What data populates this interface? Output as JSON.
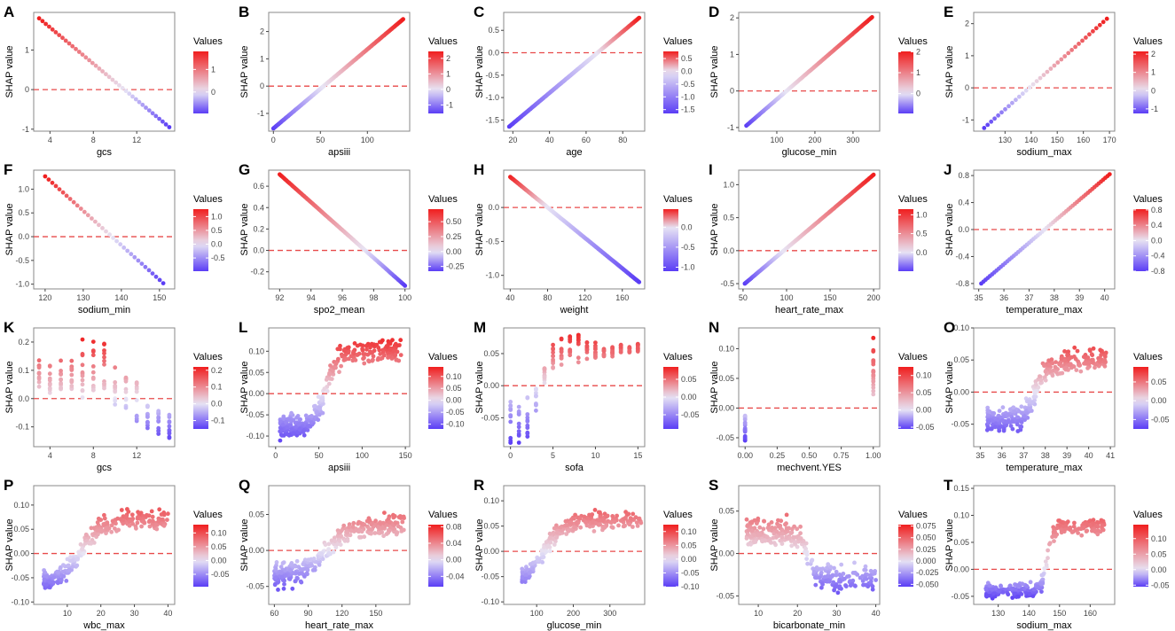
{
  "figure": {
    "y_axis_label": "SHAP value",
    "legend_title": "Values",
    "colors": {
      "low": "#5a3df5",
      "mid": "#e8e4f4",
      "high": "#f01e1e",
      "zero_line": "#e84a4a",
      "panel_border": "#888888"
    }
  },
  "chart_data": [
    {
      "letter": "A",
      "type": "scatter",
      "pattern": "linear",
      "xlabel": "gcs",
      "ylabel": "SHAP value",
      "xlim": [
        2.5,
        15.5
      ],
      "ylim": [
        -1.05,
        1.95
      ],
      "xticks": [
        4,
        8,
        12
      ],
      "yticks": [
        -1,
        0,
        1
      ],
      "ytick_labels": [
        "-1",
        "0",
        "1"
      ],
      "x_range": [
        3,
        15
      ],
      "y_range": [
        1.8,
        -0.95
      ],
      "n": 40,
      "legend_ticks": [
        1,
        0
      ],
      "legend_tick_labels": [
        "1",
        "0"
      ],
      "legend_range": [
        -0.95,
        1.8
      ]
    },
    {
      "letter": "B",
      "type": "scatter",
      "pattern": "linear",
      "xlabel": "apsiii",
      "ylabel": "SHAP value",
      "xlim": [
        -5,
        145
      ],
      "ylim": [
        -1.65,
        2.7
      ],
      "xticks": [
        0,
        50,
        100
      ],
      "yticks": [
        -1,
        0,
        1,
        2
      ],
      "ytick_labels": [
        "-1",
        "0",
        "1",
        "2"
      ],
      "x_range": [
        0,
        138
      ],
      "y_range": [
        -1.55,
        2.45
      ],
      "n": 150,
      "legend_ticks": [
        2,
        1,
        0,
        -1
      ],
      "legend_tick_labels": [
        "2",
        "1",
        "0",
        "-1"
      ],
      "legend_range": [
        -1.55,
        2.45
      ]
    },
    {
      "letter": "C",
      "type": "scatter",
      "pattern": "linear",
      "xlabel": "age",
      "ylabel": "SHAP value",
      "xlim": [
        15,
        92
      ],
      "ylim": [
        -1.75,
        0.9
      ],
      "xticks": [
        20,
        40,
        60,
        80
      ],
      "yticks": [
        -1.5,
        -1.0,
        -0.5,
        0.0,
        0.5
      ],
      "ytick_labels": [
        "-1.5",
        "-1.0",
        "-0.5",
        "0.0",
        "0.5"
      ],
      "x_range": [
        18,
        89
      ],
      "y_range": [
        -1.65,
        0.78
      ],
      "n": 160,
      "legend_ticks": [
        0.5,
        0.0,
        -0.5,
        -1.0,
        -1.5
      ],
      "legend_tick_labels": [
        "0.5",
        "0.0",
        "-0.5",
        "-1.0",
        "-1.5"
      ],
      "legend_range": [
        -1.65,
        0.78
      ]
    },
    {
      "letter": "D",
      "type": "scatter",
      "pattern": "linear",
      "xlabel": "glucose_min",
      "ylabel": "SHAP value",
      "xlim": [
        0,
        370
      ],
      "ylim": [
        -1.1,
        2.15
      ],
      "xticks": [
        100,
        200,
        300
      ],
      "yticks": [
        -1,
        0,
        1,
        2
      ],
      "ytick_labels": [
        "-1",
        "0",
        "1",
        "2"
      ],
      "x_range": [
        20,
        350
      ],
      "y_range": [
        -0.95,
        2.02
      ],
      "n": 110,
      "legend_ticks": [
        2,
        1,
        0
      ],
      "legend_tick_labels": [
        "2",
        "1",
        "0"
      ],
      "legend_range": [
        -0.95,
        2.02
      ]
    },
    {
      "letter": "E",
      "type": "scatter",
      "pattern": "linear",
      "xlabel": "sodium_max",
      "ylabel": "SHAP value",
      "xlim": [
        118,
        172
      ],
      "ylim": [
        -1.35,
        2.35
      ],
      "xticks": [
        130,
        140,
        150,
        160,
        170
      ],
      "yticks": [
        -1,
        0,
        1,
        2
      ],
      "ytick_labels": [
        "-1",
        "0",
        "1",
        "2"
      ],
      "x_range": [
        122,
        169
      ],
      "y_range": [
        -1.25,
        2.15
      ],
      "n": 36,
      "legend_ticks": [
        2,
        1,
        0,
        -1
      ],
      "legend_tick_labels": [
        "2",
        "1",
        "0",
        "-1"
      ],
      "legend_range": [
        -1.25,
        2.15
      ]
    },
    {
      "letter": "F",
      "type": "scatter",
      "pattern": "linear",
      "xlabel": "sodium_min",
      "ylabel": "SHAP value",
      "xlim": [
        117,
        154
      ],
      "ylim": [
        -1.1,
        1.4
      ],
      "xticks": [
        120,
        130,
        140,
        150
      ],
      "yticks": [
        -1.0,
        -0.5,
        0.0,
        0.5,
        1.0
      ],
      "ytick_labels": [
        "-1.0",
        "-0.5",
        "0.0",
        "0.5",
        "1.0"
      ],
      "x_range": [
        120,
        151
      ],
      "y_range": [
        1.27,
        -0.98
      ],
      "n": 34,
      "legend_ticks": [
        1.0,
        0.5,
        0.0,
        -0.5
      ],
      "legend_tick_labels": [
        "1.0",
        "0.5",
        "0.0",
        "-0.5"
      ],
      "legend_range": [
        -0.98,
        1.27
      ]
    },
    {
      "letter": "G",
      "type": "scatter",
      "pattern": "linear",
      "xlabel": "spo2_mean",
      "ylabel": "SHAP value",
      "xlim": [
        91.3,
        100.3
      ],
      "ylim": [
        -0.36,
        0.75
      ],
      "xticks": [
        92,
        94,
        96,
        98,
        100
      ],
      "yticks": [
        -0.2,
        0.0,
        0.2,
        0.4,
        0.6
      ],
      "ytick_labels": [
        "-0.2",
        "0.0",
        "0.2",
        "0.4",
        "0.6"
      ],
      "x_range": [
        92,
        100
      ],
      "y_range": [
        0.71,
        -0.33
      ],
      "n": 110,
      "legend_ticks": [
        0.5,
        0.25,
        0.0,
        -0.25
      ],
      "legend_tick_labels": [
        "0.50",
        "0.25",
        "0.00",
        "-0.25"
      ],
      "legend_range": [
        -0.33,
        0.71
      ]
    },
    {
      "letter": "H",
      "type": "scatter",
      "pattern": "linear",
      "xlabel": "weight",
      "ylabel": "SHAP value",
      "xlim": [
        33,
        184
      ],
      "ylim": [
        -1.2,
        0.55
      ],
      "xticks": [
        40,
        80,
        120,
        160
      ],
      "yticks": [
        -1.0,
        -0.5,
        0.0
      ],
      "ytick_labels": [
        "-1.0",
        "-0.5",
        "0.0"
      ],
      "x_range": [
        40,
        178
      ],
      "y_range": [
        0.45,
        -1.1
      ],
      "n": 150,
      "legend_ticks": [
        0.0,
        -0.5,
        -1.0
      ],
      "legend_tick_labels": [
        "0.0",
        "-0.5",
        "-1.0"
      ],
      "legend_range": [
        -1.1,
        0.45
      ]
    },
    {
      "letter": "I",
      "type": "scatter",
      "pattern": "linear",
      "xlabel": "heart_rate_max",
      "ylabel": "SHAP value",
      "xlim": [
        45,
        207
      ],
      "ylim": [
        -0.58,
        1.22
      ],
      "xticks": [
        50,
        100,
        150,
        200
      ],
      "yticks": [
        -0.5,
        0.0,
        0.5,
        1.0
      ],
      "ytick_labels": [
        "-0.5",
        "0.0",
        "0.5",
        "1.0"
      ],
      "x_range": [
        52,
        200
      ],
      "y_range": [
        -0.5,
        1.15
      ],
      "n": 120,
      "legend_ticks": [
        1.0,
        0.5,
        0.0
      ],
      "legend_tick_labels": [
        "1.0",
        "0.5",
        "0.0"
      ],
      "legend_range": [
        -0.5,
        1.15
      ]
    },
    {
      "letter": "J",
      "type": "scatter",
      "pattern": "linear",
      "xlabel": "temperature_max",
      "ylabel": "SHAP value",
      "xlim": [
        34.8,
        40.4
      ],
      "ylim": [
        -0.88,
        0.88
      ],
      "xticks": [
        35,
        36,
        37,
        38,
        39,
        40
      ],
      "yticks": [
        -0.8,
        -0.4,
        0.0,
        0.4,
        0.8
      ],
      "ytick_labels": [
        "-0.8",
        "-0.4",
        "0.0",
        "0.4",
        "0.8"
      ],
      "x_range": [
        35.1,
        40.2
      ],
      "y_range": [
        -0.8,
        0.82
      ],
      "n": 60,
      "legend_ticks": [
        0.8,
        0.4,
        0.0,
        -0.4,
        -0.8
      ],
      "legend_tick_labels": [
        "0.8",
        "0.4",
        "0.0",
        "-0.4",
        "-0.8"
      ],
      "legend_range": [
        -0.8,
        0.82
      ]
    },
    {
      "letter": "K",
      "type": "scatter",
      "pattern": "cat_step",
      "xlabel": "gcs",
      "ylabel": "SHAP value",
      "xlim": [
        2.5,
        15.5
      ],
      "ylim": [
        -0.17,
        0.25
      ],
      "xticks": [
        4,
        8,
        12
      ],
      "yticks": [
        -0.1,
        0.0,
        0.1,
        0.2
      ],
      "ytick_labels": [
        "-0.1",
        "0.0",
        "0.1",
        "0.2"
      ],
      "cats": [
        3,
        4,
        5,
        6,
        7,
        8,
        9,
        10,
        11,
        12,
        13,
        14,
        15
      ],
      "cat_ranges": [
        [
          0.04,
          0.18
        ],
        [
          0.02,
          0.12
        ],
        [
          0.03,
          0.14
        ],
        [
          0.02,
          0.15
        ],
        [
          0.0,
          0.21
        ],
        [
          0.01,
          0.22
        ],
        [
          0.0,
          0.2
        ],
        [
          -0.03,
          0.12
        ],
        [
          -0.05,
          0.1
        ],
        [
          -0.08,
          0.06
        ],
        [
          -0.12,
          -0.02
        ],
        [
          -0.13,
          -0.03
        ],
        [
          -0.15,
          -0.05
        ]
      ],
      "n": 150,
      "legend_ticks": [
        0.2,
        0.1,
        0.0,
        -0.1
      ],
      "legend_tick_labels": [
        "0.2",
        "0.1",
        "0.0",
        "-0.1"
      ],
      "legend_range": [
        -0.15,
        0.22
      ]
    },
    {
      "letter": "L",
      "type": "scatter",
      "pattern": "sigmoid",
      "xlabel": "apsiii",
      "ylabel": "SHAP value",
      "xlim": [
        -8,
        155
      ],
      "ylim": [
        -0.125,
        0.155
      ],
      "xticks": [
        0,
        50,
        100,
        150
      ],
      "yticks": [
        -0.1,
        -0.05,
        0.0,
        0.05,
        0.1
      ],
      "ytick_labels": [
        "-0.10",
        "-0.05",
        "0.00",
        "0.05",
        "0.10"
      ],
      "x_range": [
        5,
        145
      ],
      "s_params": [
        -0.08,
        0.1,
        58,
        7,
        0.025
      ],
      "n": 330,
      "legend_ticks": [
        0.1,
        0.05,
        0.0,
        -0.05,
        -0.1
      ],
      "legend_tick_labels": [
        "0.10",
        "0.05",
        "0.00",
        "-0.05",
        "-0.10"
      ],
      "legend_range": [
        -0.12,
        0.14
      ]
    },
    {
      "letter": "M",
      "type": "scatter",
      "pattern": "cat_step",
      "xlabel": "sofa",
      "ylabel": "SHAP value",
      "xlim": [
        -0.8,
        15.8
      ],
      "ylim": [
        -0.095,
        0.09
      ],
      "xticks": [
        0,
        5,
        10,
        15
      ],
      "yticks": [
        -0.05,
        0.0,
        0.05
      ],
      "ytick_labels": [
        "-0.05",
        "0.00",
        "0.05"
      ],
      "cats": [
        0,
        1,
        2,
        3,
        4,
        5,
        6,
        7,
        8,
        9,
        10,
        11,
        12,
        13,
        14,
        15
      ],
      "cat_ranges": [
        [
          -0.09,
          -0.025
        ],
        [
          -0.09,
          -0.02
        ],
        [
          -0.08,
          -0.015
        ],
        [
          -0.04,
          0.0
        ],
        [
          0.0,
          0.03
        ],
        [
          0.025,
          0.065
        ],
        [
          0.03,
          0.075
        ],
        [
          0.04,
          0.08
        ],
        [
          0.035,
          0.085
        ],
        [
          0.04,
          0.07
        ],
        [
          0.04,
          0.07
        ],
        [
          0.045,
          0.065
        ],
        [
          0.045,
          0.06
        ],
        [
          0.05,
          0.065
        ],
        [
          0.05,
          0.06
        ],
        [
          0.05,
          0.065
        ]
      ],
      "n": 170,
      "legend_ticks": [
        0.05,
        0.0,
        -0.05
      ],
      "legend_tick_labels": [
        "0.05",
        "0.00",
        "-0.05"
      ],
      "legend_range": [
        -0.09,
        0.085
      ]
    },
    {
      "letter": "N",
      "type": "scatter",
      "pattern": "cat_step",
      "xlabel": "mechvent.YES",
      "ylabel": "SHAP value",
      "xlim": [
        -0.05,
        1.05
      ],
      "ylim": [
        -0.065,
        0.135
      ],
      "xticks": [
        0.0,
        0.25,
        0.5,
        0.75,
        1.0
      ],
      "xtick_labels": [
        "0.00",
        "0.25",
        "0.50",
        "0.75",
        "1.00"
      ],
      "yticks": [
        -0.05,
        0.0,
        0.05,
        0.1
      ],
      "ytick_labels": [
        "-0.05",
        "0.00",
        "0.05",
        "0.10"
      ],
      "cats": [
        0,
        1
      ],
      "cat_ranges": [
        [
          -0.055,
          -0.01
        ],
        [
          0.02,
          0.125
        ]
      ],
      "n": 45,
      "legend_ticks": [
        0.1,
        0.05,
        0.0,
        -0.05
      ],
      "legend_tick_labels": [
        "0.10",
        "0.05",
        "0.00",
        "-0.05"
      ],
      "legend_range": [
        -0.055,
        0.125
      ]
    },
    {
      "letter": "O",
      "type": "scatter",
      "pattern": "sigmoid",
      "xlabel": "temperature_max",
      "ylabel": "SHAP value",
      "xlim": [
        34.7,
        41.2
      ],
      "ylim": [
        -0.085,
        0.1
      ],
      "xticks": [
        35,
        36,
        37,
        38,
        39,
        40,
        41
      ],
      "yticks": [
        -0.05,
        0.0,
        0.05,
        0.1
      ],
      "ytick_labels": [
        "-0.05",
        "0.00",
        "0.05",
        "0.10"
      ],
      "x_range": [
        35.3,
        40.8
      ],
      "s_params": [
        -0.045,
        0.05,
        37.6,
        0.3,
        0.018
      ],
      "n": 320,
      "legend_ticks": [
        0.05,
        0.0,
        -0.05
      ],
      "legend_tick_labels": [
        "0.05",
        "0.00",
        "-0.05"
      ],
      "legend_range": [
        -0.075,
        0.09
      ]
    },
    {
      "letter": "P",
      "type": "scatter",
      "pattern": "sigmoid",
      "xlabel": "wbc_max",
      "ylabel": "SHAP value",
      "xlim": [
        0,
        42
      ],
      "ylim": [
        -0.105,
        0.14
      ],
      "xticks": [
        10,
        20,
        30,
        40
      ],
      "yticks": [
        -0.1,
        -0.05,
        0.0,
        0.05,
        0.1
      ],
      "ytick_labels": [
        "-0.10",
        "-0.05",
        "0.00",
        "0.05",
        "0.10"
      ],
      "x_range": [
        3,
        40
      ],
      "s_params": [
        -0.06,
        0.07,
        14,
        3,
        0.018
      ],
      "n": 280,
      "legend_ticks": [
        0.1,
        0.05,
        0.0,
        -0.05
      ],
      "legend_tick_labels": [
        "0.10",
        "0.05",
        "0.00",
        "-0.05"
      ],
      "legend_range": [
        -0.095,
        0.13
      ]
    },
    {
      "letter": "Q",
      "type": "scatter",
      "pattern": "sigmoid",
      "xlabel": "heart_rate_max",
      "ylabel": "SHAP value",
      "xlim": [
        55,
        180
      ],
      "ylim": [
        -0.075,
        0.09
      ],
      "xticks": [
        60,
        90,
        120,
        150
      ],
      "yticks": [
        -0.05,
        0.0,
        0.05
      ],
      "ytick_labels": [
        "-0.05",
        "0.00",
        "0.05"
      ],
      "x_range": [
        60,
        175
      ],
      "s_params": [
        -0.035,
        0.035,
        108,
        10,
        0.014
      ],
      "n": 320,
      "legend_ticks": [
        0.08,
        0.04,
        0.0,
        -0.04
      ],
      "legend_tick_labels": [
        "0.08",
        "0.04",
        "0.00",
        "-0.04"
      ],
      "legend_range": [
        -0.065,
        0.085
      ]
    },
    {
      "letter": "R",
      "type": "scatter",
      "pattern": "sigmoid",
      "xlabel": "glucose_min",
      "ylabel": "SHAP value",
      "xlim": [
        10,
        395
      ],
      "ylim": [
        -0.105,
        0.13
      ],
      "xticks": [
        100,
        200,
        300
      ],
      "yticks": [
        -0.1,
        -0.05,
        0.0,
        0.05,
        0.1
      ],
      "ytick_labels": [
        "-0.10",
        "-0.05",
        "0.00",
        "0.05",
        "0.10"
      ],
      "x_range": [
        60,
        385
      ],
      "s_params": [
        -0.06,
        0.06,
        120,
        25,
        0.016
      ],
      "n": 260,
      "legend_ticks": [
        0.1,
        0.05,
        0.0,
        -0.05,
        -0.1
      ],
      "legend_tick_labels": [
        "0.10",
        "0.05",
        "0.00",
        "-0.05",
        "-0.10"
      ],
      "legend_range": [
        -0.1,
        0.125
      ]
    },
    {
      "letter": "S",
      "type": "scatter",
      "pattern": "sigmoid",
      "xlabel": "bicarbonate_min",
      "ylabel": "SHAP value",
      "xlim": [
        5,
        41
      ],
      "ylim": [
        -0.06,
        0.08
      ],
      "xticks": [
        10,
        20,
        30,
        40
      ],
      "yticks": [
        -0.05,
        0.0,
        0.05
      ],
      "ytick_labels": [
        "-0.05",
        "0.00",
        "0.05"
      ],
      "x_range": [
        7,
        40
      ],
      "s_params": [
        0.025,
        -0.03,
        22.5,
        1.0,
        0.016
      ],
      "n": 300,
      "legend_ticks": [
        0.075,
        0.05,
        0.025,
        0.0,
        -0.025,
        -0.05
      ],
      "legend_tick_labels": [
        "0.075",
        "0.050",
        "0.025",
        "0.000",
        "-0.025",
        "-0.050"
      ],
      "legend_range": [
        -0.055,
        0.078
      ]
    },
    {
      "letter": "T",
      "type": "scatter",
      "pattern": "sigmoid",
      "xlabel": "sodium_max",
      "ylabel": "SHAP value",
      "xlim": [
        122,
        168
      ],
      "ylim": [
        -0.065,
        0.155
      ],
      "xticks": [
        130,
        140,
        150,
        160
      ],
      "yticks": [
        -0.05,
        0.0,
        0.05,
        0.1,
        0.15
      ],
      "ytick_labels": [
        "-0.05",
        "0.00",
        "0.05",
        "0.10",
        "0.15"
      ],
      "x_range": [
        126,
        165
      ],
      "s_params": [
        -0.04,
        0.08,
        146,
        1.0,
        0.013
      ],
      "n": 260,
      "legend_ticks": [
        0.1,
        0.05,
        0.0,
        -0.05
      ],
      "legend_tick_labels": [
        "0.10",
        "0.05",
        "0.00",
        "-0.05"
      ],
      "legend_range": [
        -0.055,
        0.145
      ]
    }
  ]
}
